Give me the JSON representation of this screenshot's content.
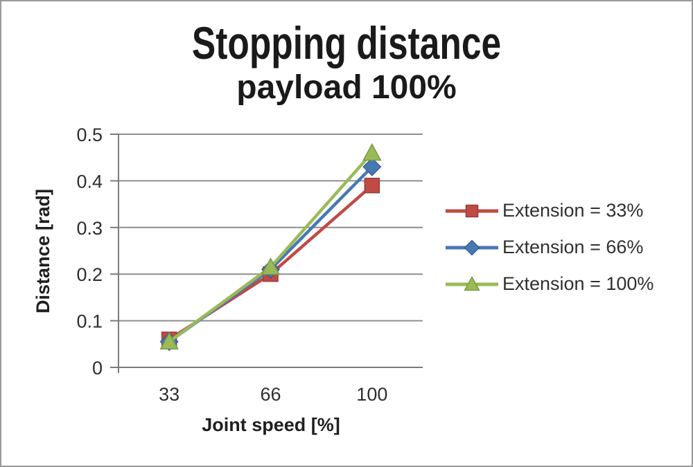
{
  "chart_data": {
    "type": "line",
    "title": "Stopping distance",
    "subtitle": "payload 100%",
    "categories": [
      "33",
      "66",
      "100"
    ],
    "xlabel": "Joint speed [%]",
    "ylabel": "Distance [rad]",
    "ylim": [
      0,
      0.5
    ],
    "y_ticks": [
      0,
      0.1,
      0.2,
      0.3,
      0.4,
      0.5
    ],
    "y_tick_labels": [
      "0",
      "0.1",
      "0.2",
      "0.3",
      "0.4",
      "0.5"
    ],
    "grid": true,
    "legend_position": "right",
    "series": [
      {
        "name": "Extension = 33%",
        "marker": "square",
        "color": "#C04A45",
        "edge_color": "#9A3B38",
        "values": [
          0.06,
          0.2,
          0.39
        ]
      },
      {
        "name": "Extension = 66%",
        "marker": "diamond",
        "color": "#4779B4",
        "edge_color": "#38608F",
        "values": [
          0.055,
          0.21,
          0.43
        ]
      },
      {
        "name": "Extension = 100%",
        "marker": "triangle",
        "color": "#9ABA58",
        "edge_color": "#7C9A42",
        "values": [
          0.055,
          0.215,
          0.46
        ]
      }
    ]
  },
  "colors": {
    "background": "#ffffff",
    "frame_border": "#9a9a9a",
    "gridline": "#8e8e8e",
    "axis": "#7a7a7a",
    "title_text": "#1a1a1a",
    "tick_text": "#2e2e2e"
  }
}
